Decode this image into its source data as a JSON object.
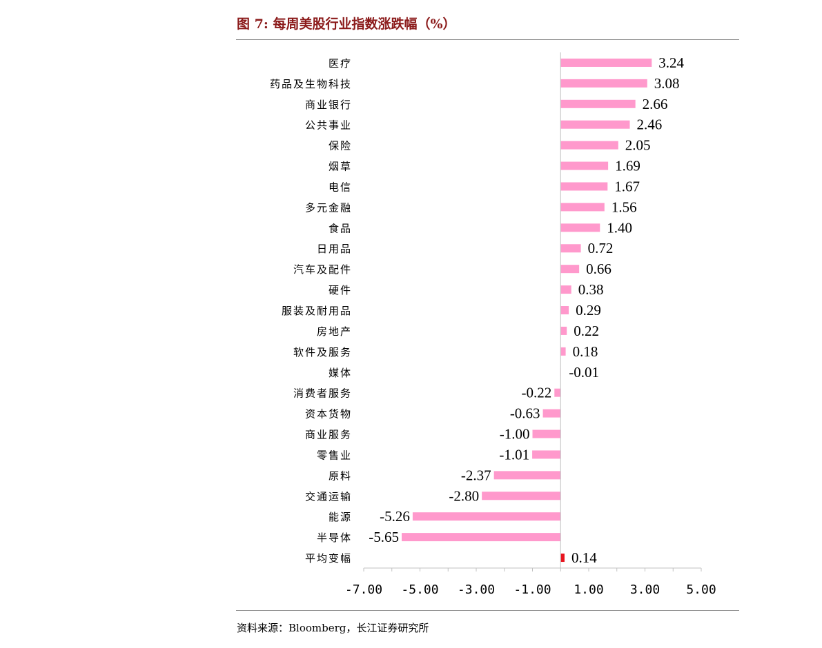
{
  "title": "图 7: 每周美股行业指数涨跌幅（%）",
  "source": "资料来源：Bloomberg，长江证券研究所",
  "chart_data": {
    "type": "bar",
    "orientation": "horizontal",
    "title": "图 7: 每周美股行业指数涨跌幅（%）",
    "xlabel": "",
    "ylabel": "",
    "xlim": [
      -7,
      5
    ],
    "tick_values": [
      -7,
      -5,
      -3,
      -1,
      1,
      3,
      5
    ],
    "tick_labels": [
      "-7.00",
      "-5.00",
      "-3.00",
      "-1.00",
      "1.00",
      "3.00",
      "5.00"
    ],
    "grid": false,
    "legend": "none",
    "colors": {
      "bar": "#ff99cc",
      "highlight": "#e8141f",
      "axis": "#c0c0c0"
    },
    "categories": [
      "医疗",
      "药品及生物科技",
      "商业银行",
      "公共事业",
      "保险",
      "烟草",
      "电信",
      "多元金融",
      "食品",
      "日用品",
      "汽车及配件",
      "硬件",
      "服装及耐用品",
      "房地产",
      "软件及服务",
      "媒体",
      "消费者服务",
      "资本货物",
      "商业服务",
      "零售业",
      "原料",
      "交通运输",
      "能源",
      "半导体",
      "平均变幅"
    ],
    "values": [
      3.24,
      3.08,
      2.66,
      2.46,
      2.05,
      1.69,
      1.67,
      1.56,
      1.4,
      0.72,
      0.66,
      0.38,
      0.29,
      0.22,
      0.18,
      -0.01,
      -0.22,
      -0.63,
      -1.0,
      -1.01,
      -2.37,
      -2.8,
      -5.26,
      -5.65,
      0.14
    ],
    "value_labels": [
      "3.24",
      "3.08",
      "2.66",
      "2.46",
      "2.05",
      "1.69",
      "1.67",
      "1.56",
      "1.40",
      "0.72",
      "0.66",
      "0.38",
      "0.29",
      "0.22",
      "0.18",
      "-0.01",
      "-0.22",
      "-0.63",
      "-1.00",
      "-1.01",
      "-2.37",
      "-2.80",
      "-5.26",
      "-5.65",
      "0.14"
    ],
    "highlight_category": "平均变幅"
  }
}
